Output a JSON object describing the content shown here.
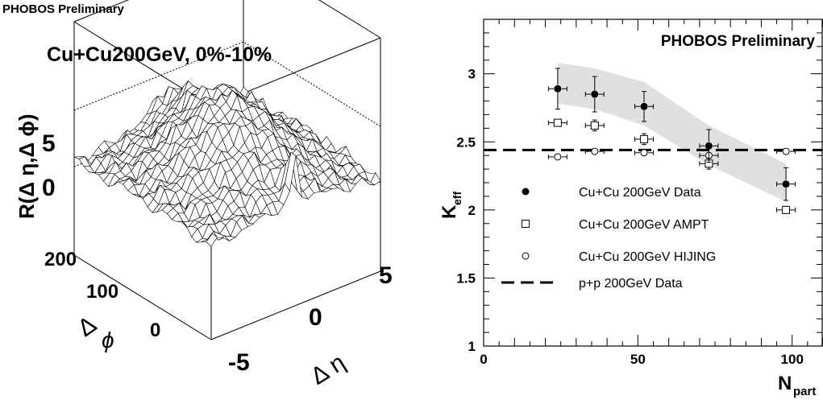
{
  "header": {
    "preliminary_label": "PHOBOS Preliminary"
  },
  "left_plot": {
    "title": "Cu+Cu200GeV, 0%-10%",
    "zlabel": "R(Δ η,Δ ϕ)",
    "z_ticks": [
      "5",
      "0"
    ],
    "phi_label": "Δ",
    "phi_sub": "ϕ",
    "phi_ticks": [
      "200",
      "100",
      "0"
    ],
    "eta_label": "Δ η",
    "eta_ticks": [
      "5",
      "0",
      "-5"
    ]
  },
  "chart_data": {
    "type": "scatter",
    "title": "PHOBOS Preliminary",
    "xlabel": "N",
    "xlabel_sub": "part",
    "ylabel": "K",
    "ylabel_sub": "eff",
    "xlim": [
      0,
      110
    ],
    "ylim": [
      1,
      3.4
    ],
    "x_ticks": [
      "0",
      "50",
      "100"
    ],
    "y_ticks": [
      "1",
      "1.5",
      "2",
      "2.5",
      "3"
    ],
    "series": [
      {
        "name": "Cu+Cu 200GeV Data",
        "marker": "filled-circle",
        "x": [
          24,
          36,
          52,
          73,
          98
        ],
        "y": [
          2.89,
          2.85,
          2.76,
          2.47,
          2.19
        ],
        "yerr": [
          0.15,
          0.13,
          0.11,
          0.12,
          0.12
        ],
        "xerr": [
          3,
          3,
          3,
          3,
          3
        ]
      },
      {
        "name": "Cu+Cu 200GeV AMPT",
        "marker": "open-square",
        "x": [
          24,
          36,
          52,
          73,
          98
        ],
        "y": [
          2.64,
          2.62,
          2.52,
          2.34,
          2.0
        ],
        "yerr": [
          0.03,
          0.04,
          0.04,
          0.04,
          0.03
        ],
        "xerr": [
          3,
          3,
          3,
          3,
          3
        ]
      },
      {
        "name": "Cu+Cu 200GeV HIJING",
        "marker": "open-circle",
        "x": [
          24,
          36,
          52,
          73,
          98
        ],
        "y": [
          2.39,
          2.43,
          2.42,
          2.4,
          2.43
        ],
        "yerr": [
          0.01,
          0.01,
          0.01,
          0.01,
          0.01
        ],
        "xerr": [
          3,
          3,
          3,
          3,
          3
        ]
      },
      {
        "name": "p+p 200GeV Data",
        "marker": "dashed-line",
        "y": [
          2.44
        ]
      }
    ],
    "band": {
      "x": [
        24,
        36,
        52,
        73,
        98
      ],
      "y_low": [
        2.78,
        2.74,
        2.62,
        2.33,
        2.06
      ],
      "y_high": [
        3.08,
        3.04,
        2.94,
        2.62,
        2.34
      ],
      "color": "#e0e0e0"
    },
    "legend_position": "center-left"
  }
}
